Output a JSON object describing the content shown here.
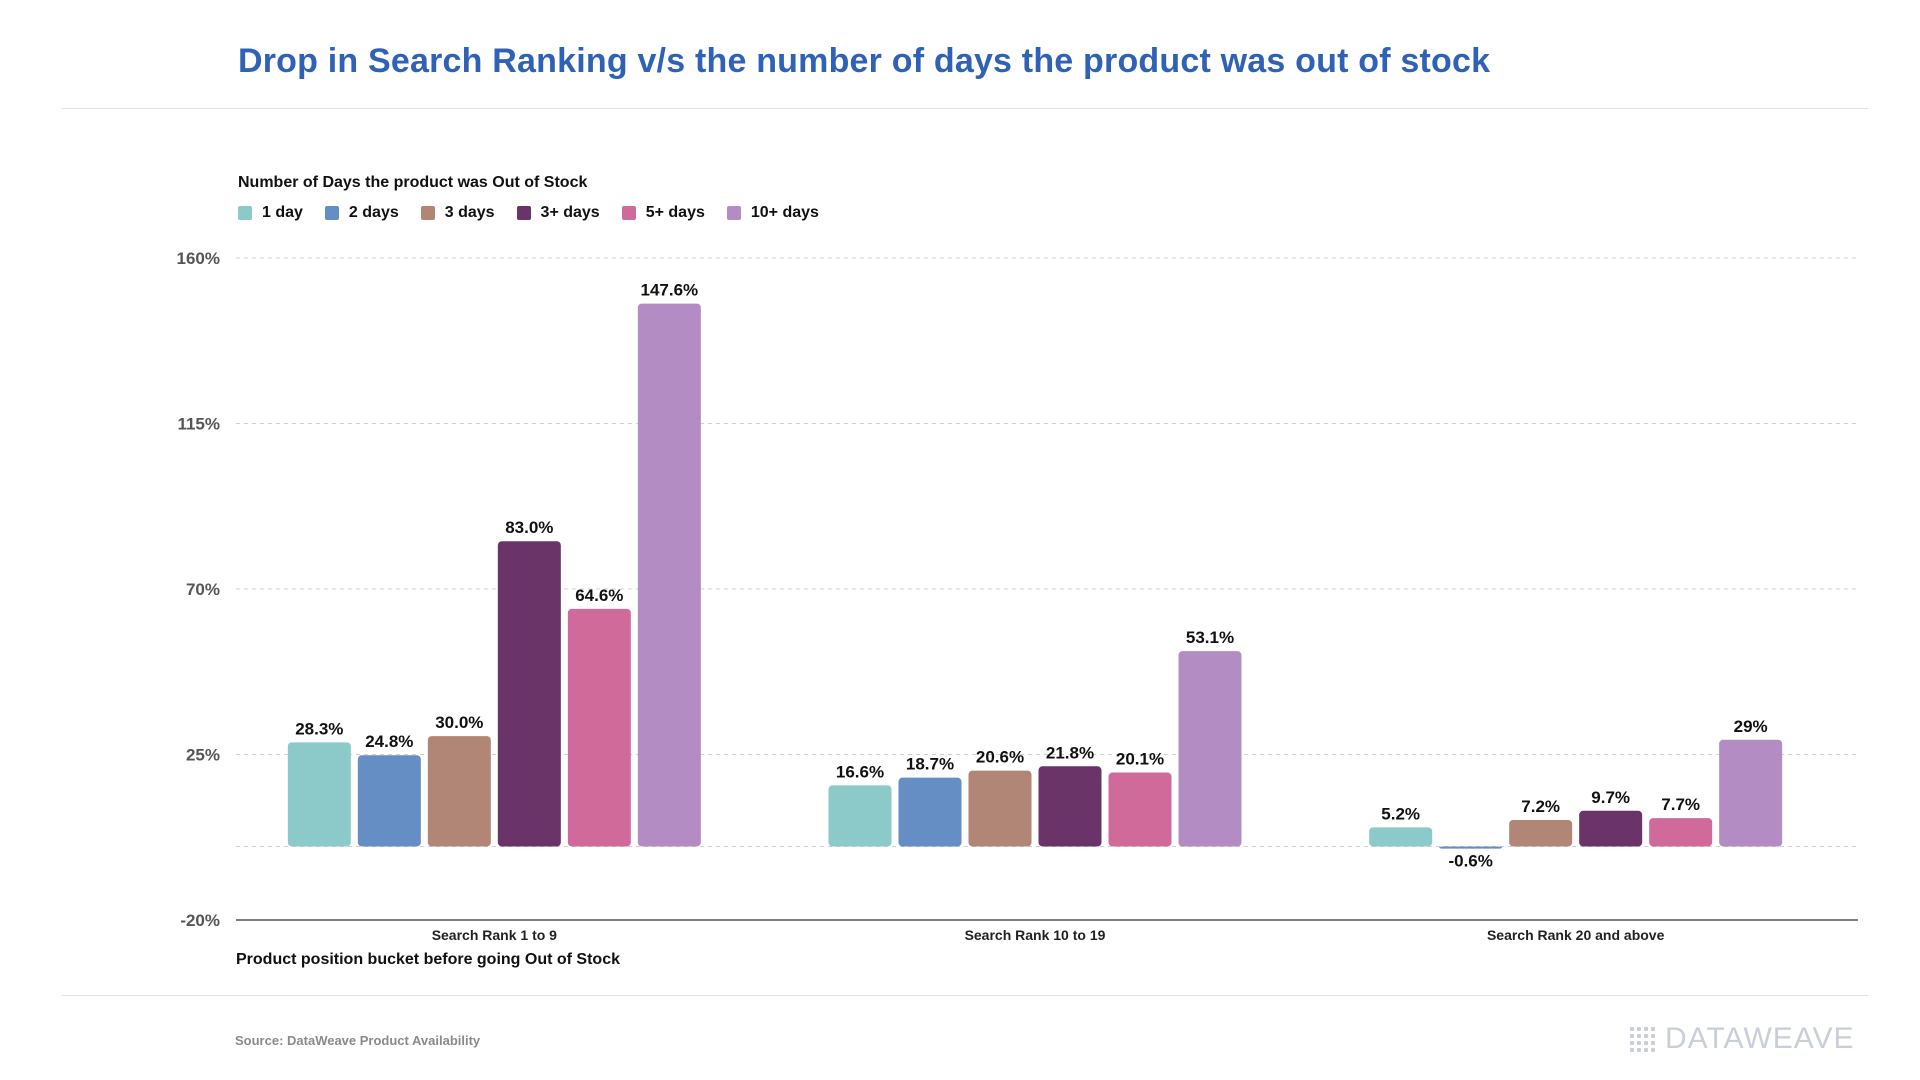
{
  "title": "Drop in Search Ranking v/s the number of days the product was out of stock",
  "source": "Source: DataWeave Product Availability",
  "logo_text": "DATAWEAVE",
  "chart_data": {
    "type": "bar",
    "legend_title": "Number of Days the product was Out of Stock",
    "legend_position": "top-left",
    "xlabel": "Product position bucket before going Out of Stock",
    "ylabel": "",
    "ylim": [
      -20,
      160
    ],
    "yticks": [
      -20,
      25,
      70,
      115,
      160
    ],
    "ytick_labels": [
      "-20%",
      "25%",
      "70%",
      "115%",
      "160%"
    ],
    "grid": true,
    "categories": [
      "Search Rank 1 to 9",
      "Search Rank 10 to 19",
      "Search Rank 20 and above"
    ],
    "series": [
      {
        "name": "1  day",
        "color": "#8cc9c9",
        "values": [
          28.3,
          16.6,
          5.2
        ],
        "labels": [
          "28.3%",
          "16.6%",
          "5.2%"
        ]
      },
      {
        "name": "2 days",
        "color": "#658ec4",
        "values": [
          24.8,
          18.7,
          -0.6
        ],
        "labels": [
          "24.8%",
          "18.7%",
          "-0.6%"
        ]
      },
      {
        "name": "3 days",
        "color": "#b28676",
        "values": [
          30.0,
          20.6,
          7.2
        ],
        "labels": [
          "30.0%",
          "20.6%",
          "7.2%"
        ]
      },
      {
        "name": "3+ days",
        "color": "#6a3468",
        "values": [
          83.0,
          21.8,
          9.7
        ],
        "labels": [
          "83.0%",
          "21.8%",
          "9.7%"
        ]
      },
      {
        "name": "5+ days",
        "color": "#d06a9b",
        "values": [
          64.6,
          20.1,
          7.7
        ],
        "labels": [
          "64.6%",
          "20.1%",
          "7.7%"
        ]
      },
      {
        "name": "10+ days",
        "color": "#b38cc3",
        "values": [
          147.6,
          53.1,
          29.0
        ],
        "labels": [
          "147.6%",
          "53.1%",
          "29%"
        ]
      }
    ]
  }
}
